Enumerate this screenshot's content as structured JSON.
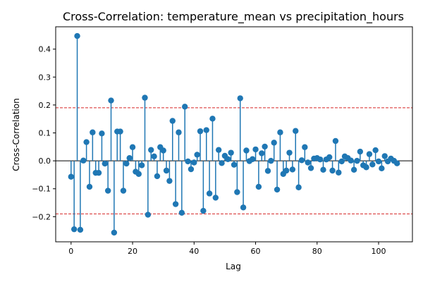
{
  "chart_data": {
    "type": "stem",
    "title": "Cross-Correlation: temperature_mean vs precipitation_hours",
    "xlabel": "Lag",
    "ylabel": "Cross-Correlation",
    "xlim": [
      -5,
      111
    ],
    "ylim": [
      -0.29,
      0.48
    ],
    "xticks": [
      0,
      20,
      40,
      60,
      80,
      100
    ],
    "yticks": [
      -0.2,
      -0.1,
      0.0,
      0.1,
      0.2,
      0.3,
      0.4
    ],
    "ytick_labels": [
      "−0.2",
      "−0.1",
      "0.0",
      "0.1",
      "0.2",
      "0.3",
      "0.4"
    ],
    "grid": false,
    "confidence_bounds": [
      0.19,
      -0.19
    ],
    "colors": {
      "stem": "#1f77b4",
      "baseline": "#000000",
      "bounds": "#d62728"
    },
    "series": [
      {
        "x": [
          0,
          1,
          2,
          3,
          4,
          5,
          6,
          7,
          8,
          9,
          10,
          11,
          12,
          13,
          14,
          15,
          16,
          17,
          18,
          19,
          20,
          21,
          22,
          23,
          24,
          25,
          26,
          27,
          28,
          29,
          30,
          31,
          32,
          33,
          34,
          35,
          36,
          37,
          38,
          39,
          40,
          41,
          42,
          43,
          44,
          45,
          46,
          47,
          48,
          49,
          50,
          51,
          52,
          53,
          54,
          55,
          56,
          57,
          58,
          59,
          60,
          61,
          62,
          63,
          64,
          65,
          66,
          67,
          68,
          69,
          70,
          71,
          72,
          73,
          74,
          75,
          76,
          77,
          78,
          79,
          80,
          81,
          82,
          83,
          84,
          85,
          86,
          87,
          88,
          89,
          90,
          91,
          92,
          93,
          94,
          95,
          96,
          97,
          98,
          99,
          100,
          101,
          102,
          103,
          104,
          105,
          106
        ],
        "y": [
          -0.057,
          -0.245,
          0.447,
          -0.247,
          0.001,
          0.067,
          -0.093,
          0.102,
          -0.043,
          -0.043,
          0.098,
          -0.01,
          -0.107,
          0.216,
          -0.257,
          0.105,
          0.105,
          -0.107,
          -0.01,
          0.01,
          0.049,
          -0.039,
          -0.047,
          -0.016,
          0.226,
          -0.193,
          0.039,
          0.016,
          -0.055,
          0.049,
          0.037,
          -0.035,
          -0.072,
          0.143,
          -0.155,
          0.102,
          -0.186,
          0.194,
          -0.002,
          -0.03,
          -0.006,
          0.022,
          0.106,
          -0.179,
          0.11,
          -0.117,
          0.151,
          -0.132,
          0.039,
          -0.008,
          0.018,
          0.006,
          0.029,
          -0.014,
          -0.112,
          0.224,
          -0.167,
          0.037,
          -0.001,
          0.006,
          0.041,
          -0.093,
          0.027,
          0.051,
          -0.036,
          0.0,
          0.065,
          -0.103,
          0.102,
          -0.047,
          -0.035,
          0.029,
          -0.031,
          0.107,
          -0.095,
          0.002,
          0.049,
          -0.006,
          -0.026,
          0.008,
          0.01,
          0.005,
          -0.032,
          0.005,
          0.013,
          -0.035,
          0.071,
          -0.042,
          -0.002,
          0.016,
          0.01,
          0.001,
          -0.032,
          0.0,
          0.033,
          -0.016,
          -0.023,
          0.024,
          -0.013,
          0.038,
          -0.002,
          -0.027,
          0.017,
          -0.002,
          0.008,
          0.0,
          -0.009
        ]
      }
    ]
  }
}
